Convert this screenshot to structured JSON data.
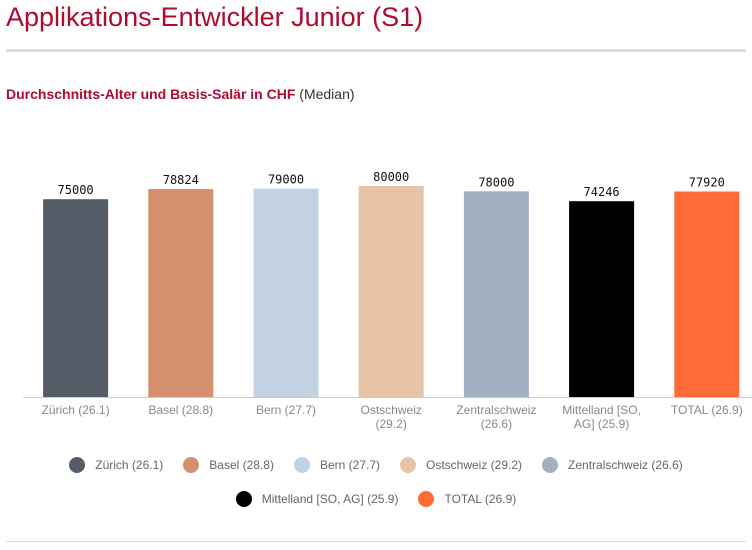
{
  "title": "Applikations-Entwickler Junior (S1)",
  "subtitle": {
    "main": "Durchschnitts-Alter und Basis-Salär in CHF",
    "suffix": "(Median)"
  },
  "chart_data": {
    "type": "bar",
    "title": "",
    "xlabel": "",
    "ylabel": "",
    "ylim": [
      0,
      80000
    ],
    "grid": false,
    "legend_position": "bottom",
    "categories": [
      "Zürich (26.1)",
      "Basel (28.8)",
      "Bern (27.7)",
      "Ostschweiz (29.2)",
      "Zentralschweiz (26.6)",
      "Mittelland [SO, AG] (25.9)",
      "TOTAL (26.9)"
    ],
    "tick_label_lines": [
      [
        "Zürich (26.1)"
      ],
      [
        "Basel (28.8)"
      ],
      [
        "Bern (27.7)"
      ],
      [
        "Ostschweiz",
        "(29.2)"
      ],
      [
        "Zentralschweiz",
        "(26.6)"
      ],
      [
        "Mittelland [SO,",
        "AG] (25.9)"
      ],
      [
        "TOTAL (26.9)"
      ]
    ],
    "values": [
      75000,
      78824,
      79000,
      80000,
      78000,
      74246,
      77920
    ],
    "colors": [
      "#545d67",
      "#d4906e",
      "#c3d2e2",
      "#e7c3a7",
      "#a3b0c1",
      "#000000",
      "#ff6a37"
    ],
    "legend_rows": [
      [
        0,
        1,
        2,
        3,
        4
      ],
      [
        5,
        6
      ]
    ]
  }
}
